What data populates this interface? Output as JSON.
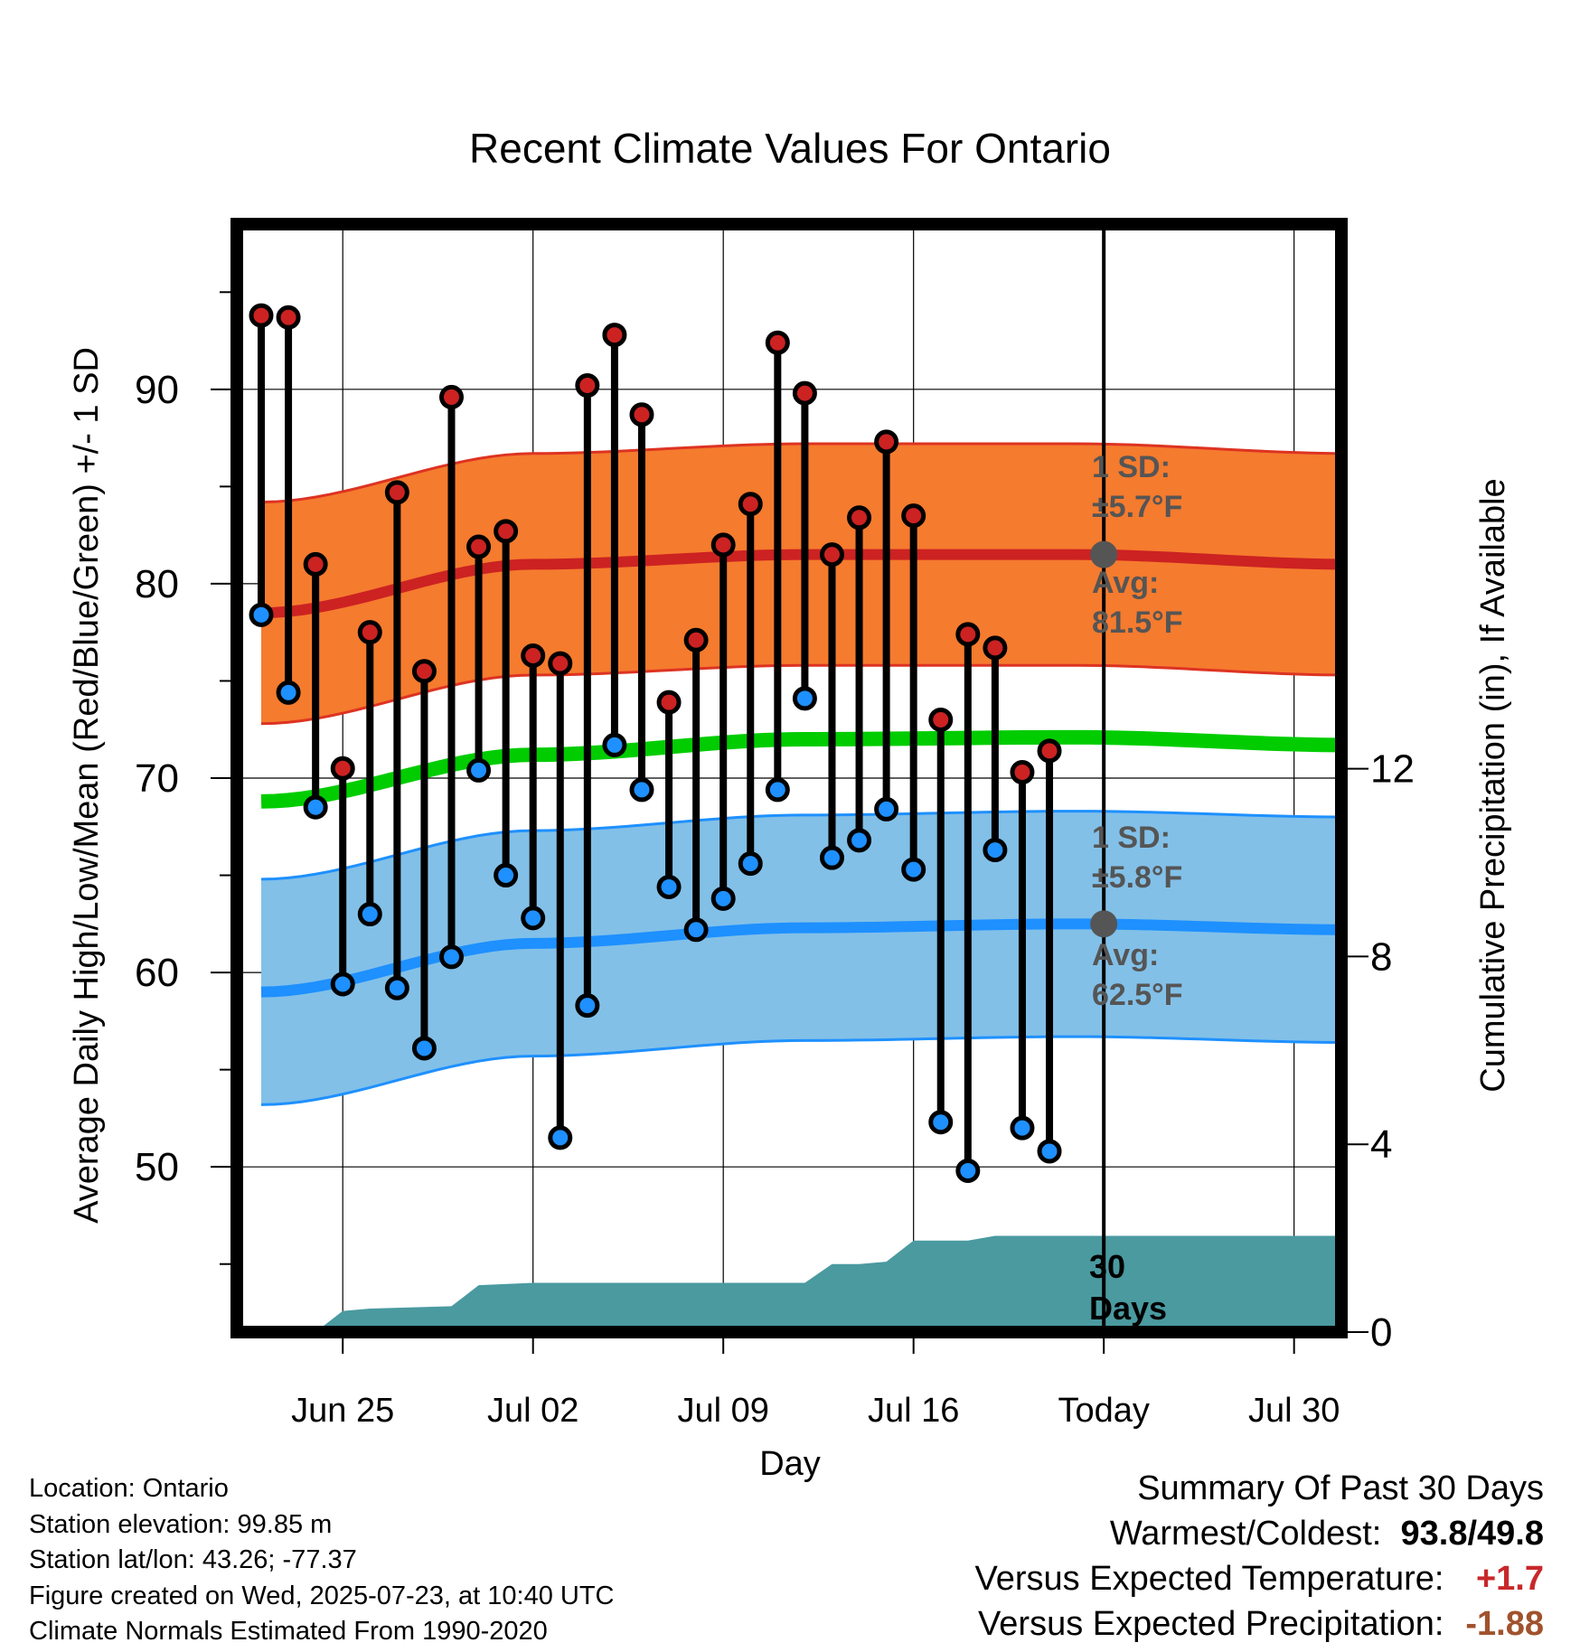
{
  "chart_data": {
    "type": "line",
    "title": "Recent Climate Values For Ontario",
    "xlabel": "Day",
    "ylabel": "Average Daily High/Low/Mean (Red/Blue/Green) +/- 1 SD",
    "y2label": "Cumulative Precipitation (in), If Available",
    "x_ticks": [
      "Jun 25",
      "Jul 02",
      "Jul 09",
      "Jul 16",
      "Today",
      "Jul 30"
    ],
    "y_ticks": [
      50,
      60,
      70,
      80,
      90
    ],
    "y2_ticks": [
      0,
      4,
      8,
      12
    ],
    "ylim": [
      41.5,
      98.5
    ],
    "y2lim": [
      0,
      23.6
    ],
    "x": [
      "Jun 22",
      "Jun 23",
      "Jun 24",
      "Jun 25",
      "Jun 26",
      "Jun 27",
      "Jun 28",
      "Jun 29",
      "Jun 30",
      "Jul 01",
      "Jul 02",
      "Jul 03",
      "Jul 04",
      "Jul 05",
      "Jul 06",
      "Jul 07",
      "Jul 08",
      "Jul 09",
      "Jul 10",
      "Jul 11",
      "Jul 12",
      "Jul 13",
      "Jul 14",
      "Jul 15",
      "Jul 16",
      "Jul 17",
      "Jul 18",
      "Jul 19",
      "Jul 20",
      "Jul 21"
    ],
    "series": [
      {
        "name": "High",
        "color": "#cc2222",
        "values": [
          93.8,
          93.7,
          81.0,
          70.5,
          77.5,
          84.7,
          75.5,
          89.6,
          81.9,
          82.7,
          76.3,
          75.9,
          90.2,
          92.8,
          88.7,
          73.9,
          77.1,
          82.0,
          84.1,
          92.4,
          89.8,
          81.5,
          83.4,
          87.3,
          83.5,
          73.0,
          77.4,
          76.7,
          70.3,
          71.4
        ]
      },
      {
        "name": "Low",
        "color": "#1e90ff",
        "values": [
          78.4,
          74.4,
          68.5,
          59.4,
          63.0,
          59.2,
          56.1,
          60.8,
          70.4,
          65.0,
          62.8,
          51.5,
          58.3,
          71.7,
          69.4,
          64.4,
          62.2,
          63.8,
          65.6,
          69.4,
          74.1,
          65.9,
          66.8,
          68.4,
          65.3,
          52.3,
          49.8,
          66.3,
          52.0,
          50.8
        ]
      }
    ],
    "normals": {
      "x_range": [
        "Jun 22",
        "Aug 01"
      ],
      "high_avg": [
        78.5,
        81.0,
        81.5,
        81.5,
        81.0
      ],
      "high_sd": 5.7,
      "low_avg": [
        59.0,
        61.5,
        62.3,
        62.5,
        62.2
      ],
      "low_sd": 5.8,
      "mean_avg": [
        68.8,
        71.2,
        72.0,
        72.1,
        71.7
      ]
    },
    "precipitation_cumulative": {
      "x": [
        "Jun 22",
        "Jun 24",
        "Jun 25",
        "Jun 26",
        "Jun 29",
        "Jun 30",
        "Jul 02",
        "Jul 12",
        "Jul 13",
        "Jul 14",
        "Jul 15",
        "Jul 16",
        "Jul 18",
        "Jul 19",
        "Jul 23",
        "Aug 01"
      ],
      "values": [
        0,
        0,
        0.45,
        0.5,
        0.55,
        1.0,
        1.05,
        1.05,
        1.45,
        1.45,
        1.5,
        1.95,
        1.95,
        2.05,
        2.05,
        2.05
      ]
    },
    "annotations": {
      "high_sd_label": "1 SD:",
      "high_sd_value": "±5.7°F",
      "high_avg_label": "Avg:",
      "high_avg_value": "81.5°F",
      "low_sd_label": "1 SD:",
      "low_sd_value": "±5.8°F",
      "low_avg_label": "Avg:",
      "low_avg_value": "62.5°F",
      "days_label_1": "30",
      "days_label_2": "Days"
    },
    "colors": {
      "high_band": "#f57b2e",
      "high_line": "#cc2222",
      "low_band": "#82c0e8",
      "low_line": "#1e90ff",
      "mean_line": "#00cc00",
      "precip_fill": "#4a9aa0",
      "annotation": "#555555"
    }
  },
  "footer": {
    "location": "Location: Ontario",
    "elevation": "Station elevation: 99.85 m",
    "latlon": "Station lat/lon: 43.26; -77.37",
    "created": "Figure created on Wed, 2025-07-23, at 10:40 UTC",
    "normals": "Climate Normals Estimated From 1990-2020"
  },
  "summary": {
    "title": "Summary Of Past 30 Days",
    "warmest_label": "Warmest/Coldest:",
    "warmest_value": "93.8",
    "coldest_value": "49.8",
    "temp_label": "Versus Expected Temperature:",
    "temp_value": "+1.7",
    "precip_label": "Versus Expected Precipitation:",
    "precip_value": "-1.88"
  }
}
